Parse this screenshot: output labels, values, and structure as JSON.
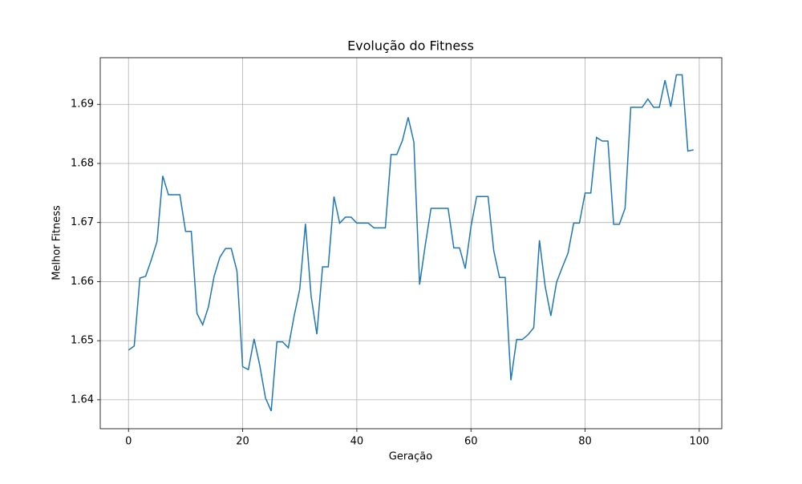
{
  "chart_data": {
    "type": "line",
    "title": "Evolução do Fitness",
    "x_label": "Geração",
    "y_label": "Melhor Fitness",
    "x": [
      0,
      1,
      2,
      3,
      4,
      5,
      6,
      7,
      8,
      9,
      10,
      11,
      12,
      13,
      14,
      15,
      16,
      17,
      18,
      19,
      20,
      21,
      22,
      23,
      24,
      25,
      26,
      27,
      28,
      29,
      30,
      31,
      32,
      33,
      34,
      35,
      36,
      37,
      38,
      39,
      40,
      41,
      42,
      43,
      44,
      45,
      46,
      47,
      48,
      49,
      50,
      51,
      52,
      53,
      54,
      55,
      56,
      57,
      58,
      59,
      60,
      61,
      62,
      63,
      64,
      65,
      66,
      67,
      68,
      69,
      70,
      71,
      72,
      73,
      74,
      75,
      76,
      77,
      78,
      79,
      80,
      81,
      82,
      83,
      84,
      85,
      86,
      87,
      88,
      89,
      90,
      91,
      92,
      93,
      94,
      95,
      96,
      97,
      98,
      99
    ],
    "series": [
      {
        "name": "Melhor Fitness",
        "color": "#1f77b4",
        "values": [
          1.6484,
          1.6491,
          1.6606,
          1.6609,
          1.6637,
          1.6668,
          1.6779,
          1.6747,
          1.6747,
          1.6747,
          1.6685,
          1.6685,
          1.6546,
          1.6527,
          1.6557,
          1.6609,
          1.6641,
          1.6656,
          1.6656,
          1.6618,
          1.6456,
          1.6451,
          1.6503,
          1.6458,
          1.6403,
          1.6381,
          1.6498,
          1.6498,
          1.6488,
          1.6541,
          1.6587,
          1.6698,
          1.6575,
          1.6511,
          1.6625,
          1.6625,
          1.6744,
          1.6699,
          1.6709,
          1.6709,
          1.6699,
          1.6699,
          1.6699,
          1.6691,
          1.6691,
          1.6691,
          1.6815,
          1.6815,
          1.6839,
          1.6878,
          1.6836,
          1.6595,
          1.6662,
          1.6724,
          1.6724,
          1.6724,
          1.6724,
          1.6657,
          1.6657,
          1.6622,
          1.6693,
          1.6744,
          1.6744,
          1.6744,
          1.6652,
          1.6607,
          1.6607,
          1.6433,
          1.6502,
          1.6502,
          1.651,
          1.6522,
          1.667,
          1.6592,
          1.6542,
          1.6599,
          1.6624,
          1.6648,
          1.6699,
          1.6699,
          1.675,
          1.675,
          1.6844,
          1.6838,
          1.6838,
          1.6697,
          1.6697,
          1.6724,
          1.6895,
          1.6895,
          1.6895,
          1.6909,
          1.6895,
          1.6895,
          1.6941,
          1.6896,
          1.695,
          1.695,
          1.6821,
          1.6823
        ]
      }
    ],
    "xlim": [
      -4.95,
      103.95
    ],
    "xticks": [
      0,
      20,
      40,
      60,
      80,
      100
    ],
    "ylim": [
      1.6351,
      1.6979
    ],
    "yticks": [
      1.64,
      1.65,
      1.66,
      1.67,
      1.68,
      1.69
    ],
    "grid": true
  }
}
